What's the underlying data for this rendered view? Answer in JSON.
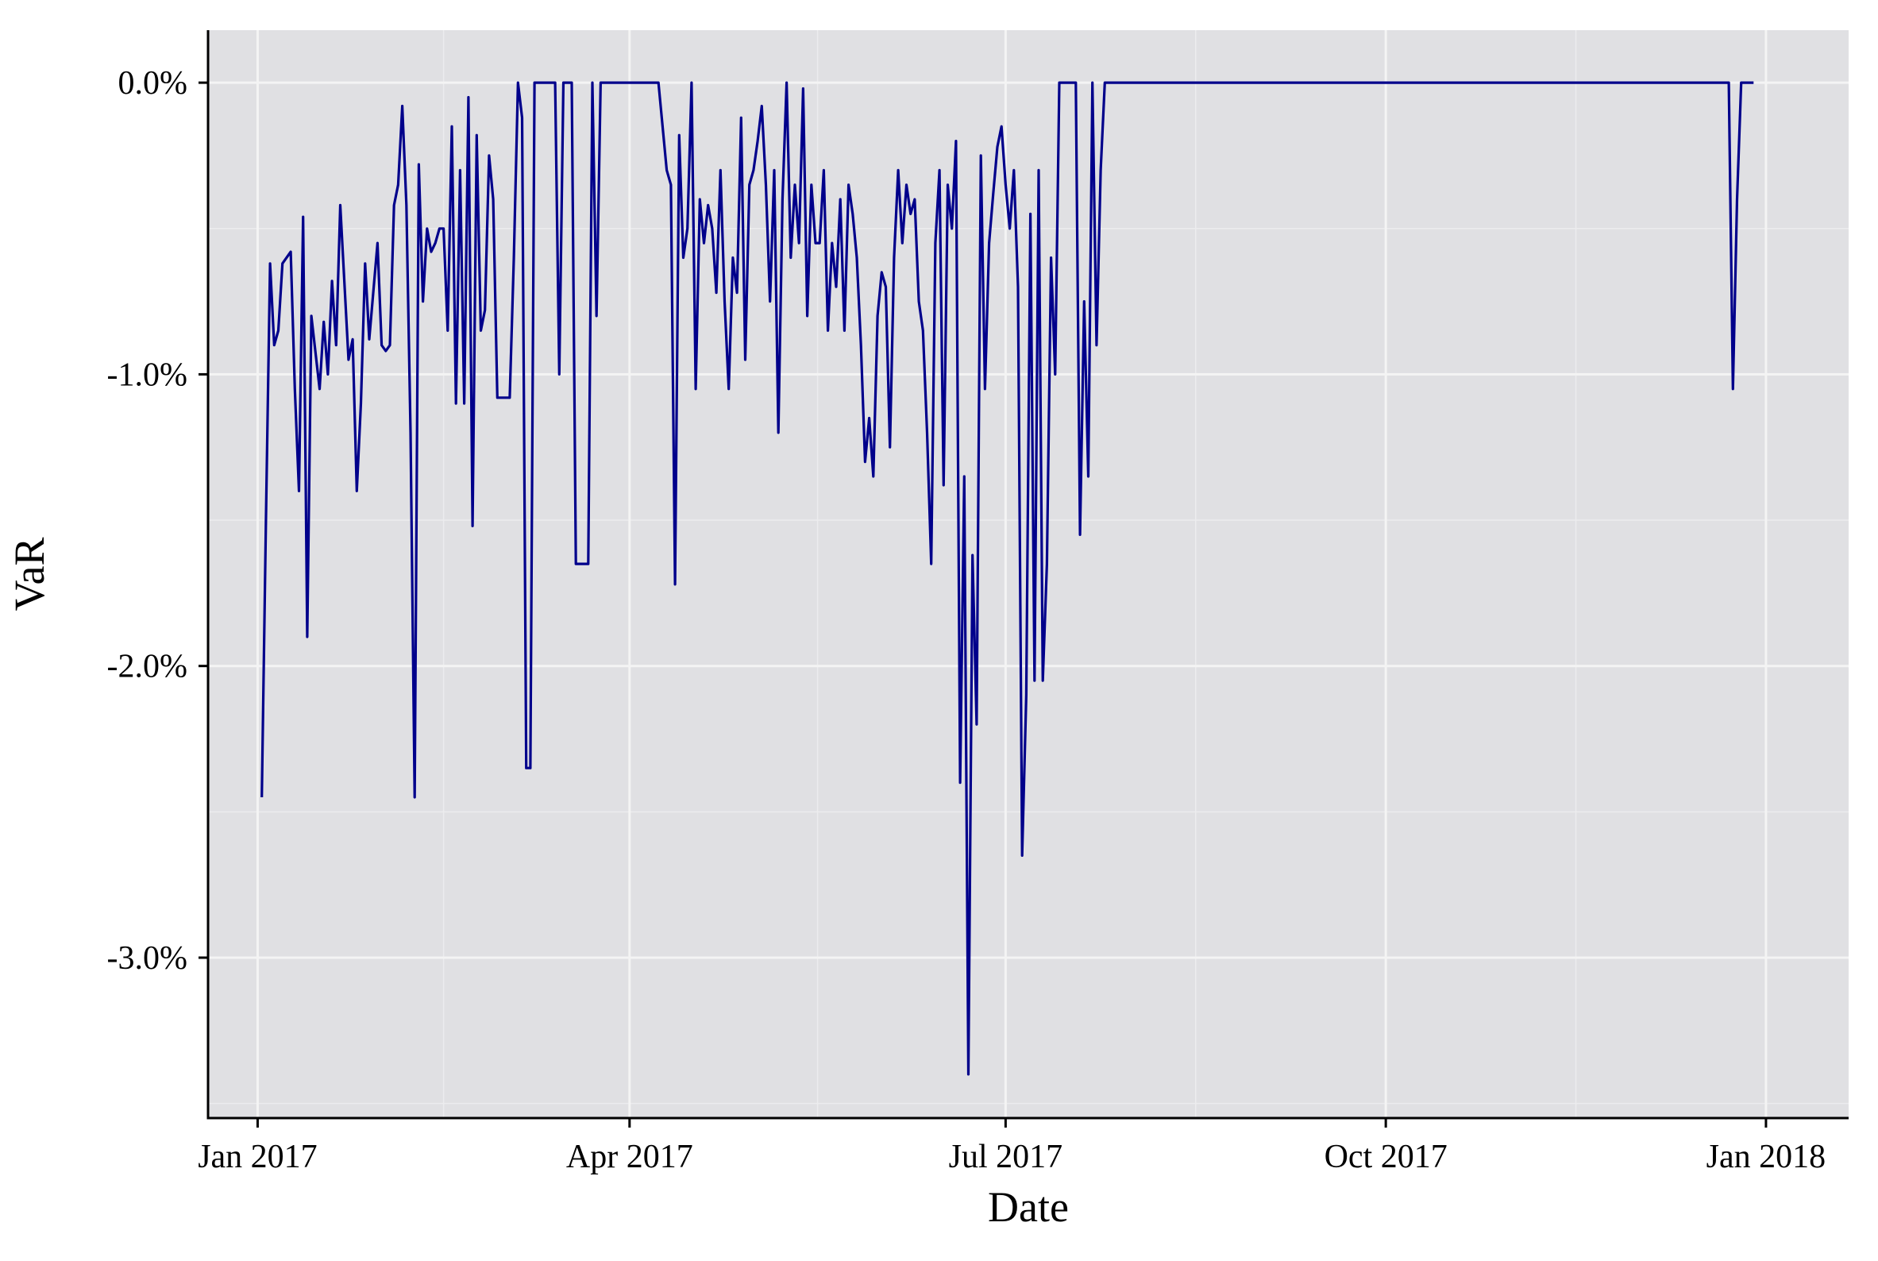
{
  "colors": {
    "panel_background": "#e0e0e3",
    "grid_major": "#f4f4f4",
    "grid_minor": "#ececee",
    "series_line": "#00008b",
    "axis": "#000000"
  },
  "chart_data": {
    "type": "line",
    "title": "",
    "xlabel": "Date",
    "ylabel": "VaR",
    "xlim": [
      "2016-12-20",
      "2018-01-21"
    ],
    "ylim": [
      -3.55,
      0.18
    ],
    "y_unit": "percent",
    "grid": true,
    "legend": "none",
    "x_ticks": [
      {
        "date": "2017-01-01",
        "label": "Jan 2017"
      },
      {
        "date": "2017-04-01",
        "label": "Apr 2017"
      },
      {
        "date": "2017-07-01",
        "label": "Jul 2017"
      },
      {
        "date": "2017-10-01",
        "label": "Oct 2017"
      },
      {
        "date": "2018-01-01",
        "label": "Jan 2018"
      }
    ],
    "y_ticks": [
      {
        "value": 0,
        "label": "0.0%"
      },
      {
        "value": -1,
        "label": "-1.0%"
      },
      {
        "value": -2,
        "label": "-2.0%"
      },
      {
        "value": -3,
        "label": "-3.0%"
      }
    ],
    "series": [
      {
        "color": "#00008b",
        "points": [
          [
            "2017-01-02",
            -2.45
          ],
          [
            "2017-01-03",
            -1.5
          ],
          [
            "2017-01-04",
            -0.62
          ],
          [
            "2017-01-05",
            -0.9
          ],
          [
            "2017-01-06",
            -0.85
          ],
          [
            "2017-01-07",
            -0.62
          ],
          [
            "2017-01-09",
            -0.58
          ],
          [
            "2017-01-10",
            -1.05
          ],
          [
            "2017-01-11",
            -1.4
          ],
          [
            "2017-01-12",
            -0.46
          ],
          [
            "2017-01-13",
            -1.9
          ],
          [
            "2017-01-14",
            -0.8
          ],
          [
            "2017-01-16",
            -1.05
          ],
          [
            "2017-01-17",
            -0.82
          ],
          [
            "2017-01-18",
            -1.0
          ],
          [
            "2017-01-19",
            -0.68
          ],
          [
            "2017-01-20",
            -0.9
          ],
          [
            "2017-01-21",
            -0.42
          ],
          [
            "2017-01-23",
            -0.95
          ],
          [
            "2017-01-24",
            -0.88
          ],
          [
            "2017-01-25",
            -1.4
          ],
          [
            "2017-01-26",
            -1.1
          ],
          [
            "2017-01-27",
            -0.62
          ],
          [
            "2017-01-28",
            -0.88
          ],
          [
            "2017-01-30",
            -0.55
          ],
          [
            "2017-01-31",
            -0.9
          ],
          [
            "2017-02-01",
            -0.92
          ],
          [
            "2017-02-02",
            -0.9
          ],
          [
            "2017-02-03",
            -0.42
          ],
          [
            "2017-02-04",
            -0.35
          ],
          [
            "2017-02-05",
            -0.08
          ],
          [
            "2017-02-06",
            -0.42
          ],
          [
            "2017-02-07",
            -1.2
          ],
          [
            "2017-02-08",
            -2.45
          ],
          [
            "2017-02-09",
            -0.28
          ],
          [
            "2017-02-10",
            -0.75
          ],
          [
            "2017-02-11",
            -0.5
          ],
          [
            "2017-02-12",
            -0.58
          ],
          [
            "2017-02-13",
            -0.55
          ],
          [
            "2017-02-14",
            -0.5
          ],
          [
            "2017-02-15",
            -0.5
          ],
          [
            "2017-02-16",
            -0.85
          ],
          [
            "2017-02-17",
            -0.15
          ],
          [
            "2017-02-18",
            -1.1
          ],
          [
            "2017-02-19",
            -0.3
          ],
          [
            "2017-02-20",
            -1.1
          ],
          [
            "2017-02-21",
            -0.05
          ],
          [
            "2017-02-22",
            -1.52
          ],
          [
            "2017-02-23",
            -0.18
          ],
          [
            "2017-02-24",
            -0.85
          ],
          [
            "2017-02-25",
            -0.78
          ],
          [
            "2017-02-26",
            -0.25
          ],
          [
            "2017-02-27",
            -0.4
          ],
          [
            "2017-02-28",
            -1.08
          ],
          [
            "2017-03-01",
            -1.08
          ],
          [
            "2017-03-02",
            -1.08
          ],
          [
            "2017-03-03",
            -1.08
          ],
          [
            "2017-03-04",
            -0.6
          ],
          [
            "2017-03-05",
            0.0
          ],
          [
            "2017-03-06",
            -0.12
          ],
          [
            "2017-03-07",
            -2.35
          ],
          [
            "2017-03-08",
            -2.35
          ],
          [
            "2017-03-09",
            0.0
          ],
          [
            "2017-03-10",
            0.0
          ],
          [
            "2017-03-13",
            0.0
          ],
          [
            "2017-03-14",
            0.0
          ],
          [
            "2017-03-15",
            -1.0
          ],
          [
            "2017-03-16",
            0.0
          ],
          [
            "2017-03-17",
            0.0
          ],
          [
            "2017-03-18",
            0.0
          ],
          [
            "2017-03-19",
            -1.65
          ],
          [
            "2017-03-20",
            -1.65
          ],
          [
            "2017-03-22",
            -1.65
          ],
          [
            "2017-03-23",
            0.0
          ],
          [
            "2017-03-24",
            -0.8
          ],
          [
            "2017-03-25",
            0.0
          ],
          [
            "2017-04-01",
            0.0
          ],
          [
            "2017-04-08",
            0.0
          ],
          [
            "2017-04-10",
            -0.3
          ],
          [
            "2017-04-11",
            -0.35
          ],
          [
            "2017-04-12",
            -1.72
          ],
          [
            "2017-04-13",
            -0.18
          ],
          [
            "2017-04-14",
            -0.6
          ],
          [
            "2017-04-15",
            -0.5
          ],
          [
            "2017-04-16",
            0.0
          ],
          [
            "2017-04-17",
            -1.05
          ],
          [
            "2017-04-18",
            -0.4
          ],
          [
            "2017-04-19",
            -0.55
          ],
          [
            "2017-04-20",
            -0.42
          ],
          [
            "2017-04-21",
            -0.5
          ],
          [
            "2017-04-22",
            -0.72
          ],
          [
            "2017-04-23",
            -0.3
          ],
          [
            "2017-04-24",
            -0.75
          ],
          [
            "2017-04-25",
            -1.05
          ],
          [
            "2017-04-26",
            -0.6
          ],
          [
            "2017-04-27",
            -0.72
          ],
          [
            "2017-04-28",
            -0.12
          ],
          [
            "2017-04-29",
            -0.95
          ],
          [
            "2017-04-30",
            -0.35
          ],
          [
            "2017-05-01",
            -0.3
          ],
          [
            "2017-05-02",
            -0.2
          ],
          [
            "2017-05-03",
            -0.08
          ],
          [
            "2017-05-04",
            -0.35
          ],
          [
            "2017-05-05",
            -0.75
          ],
          [
            "2017-05-06",
            -0.3
          ],
          [
            "2017-05-07",
            -1.2
          ],
          [
            "2017-05-08",
            -0.4
          ],
          [
            "2017-05-09",
            0.0
          ],
          [
            "2017-05-10",
            -0.6
          ],
          [
            "2017-05-11",
            -0.35
          ],
          [
            "2017-05-12",
            -0.55
          ],
          [
            "2017-05-13",
            -0.02
          ],
          [
            "2017-05-14",
            -0.8
          ],
          [
            "2017-05-15",
            -0.35
          ],
          [
            "2017-05-16",
            -0.55
          ],
          [
            "2017-05-17",
            -0.55
          ],
          [
            "2017-05-18",
            -0.3
          ],
          [
            "2017-05-19",
            -0.85
          ],
          [
            "2017-05-20",
            -0.55
          ],
          [
            "2017-05-21",
            -0.7
          ],
          [
            "2017-05-22",
            -0.4
          ],
          [
            "2017-05-23",
            -0.85
          ],
          [
            "2017-05-24",
            -0.35
          ],
          [
            "2017-05-25",
            -0.45
          ],
          [
            "2017-05-26",
            -0.6
          ],
          [
            "2017-05-27",
            -0.9
          ],
          [
            "2017-05-28",
            -1.3
          ],
          [
            "2017-05-29",
            -1.15
          ],
          [
            "2017-05-30",
            -1.35
          ],
          [
            "2017-05-31",
            -0.8
          ],
          [
            "2017-06-01",
            -0.65
          ],
          [
            "2017-06-02",
            -0.7
          ],
          [
            "2017-06-03",
            -1.25
          ],
          [
            "2017-06-04",
            -0.6
          ],
          [
            "2017-06-05",
            -0.3
          ],
          [
            "2017-06-06",
            -0.55
          ],
          [
            "2017-06-07",
            -0.35
          ],
          [
            "2017-06-08",
            -0.45
          ],
          [
            "2017-06-09",
            -0.4
          ],
          [
            "2017-06-10",
            -0.75
          ],
          [
            "2017-06-11",
            -0.85
          ],
          [
            "2017-06-12",
            -1.2
          ],
          [
            "2017-06-13",
            -1.65
          ],
          [
            "2017-06-14",
            -0.55
          ],
          [
            "2017-06-15",
            -0.3
          ],
          [
            "2017-06-16",
            -1.38
          ],
          [
            "2017-06-17",
            -0.35
          ],
          [
            "2017-06-18",
            -0.5
          ],
          [
            "2017-06-19",
            -0.2
          ],
          [
            "2017-06-20",
            -2.4
          ],
          [
            "2017-06-21",
            -1.35
          ],
          [
            "2017-06-22",
            -3.4
          ],
          [
            "2017-06-23",
            -1.62
          ],
          [
            "2017-06-24",
            -2.2
          ],
          [
            "2017-06-25",
            -0.25
          ],
          [
            "2017-06-26",
            -1.05
          ],
          [
            "2017-06-27",
            -0.55
          ],
          [
            "2017-06-28",
            -0.38
          ],
          [
            "2017-06-29",
            -0.22
          ],
          [
            "2017-06-30",
            -0.15
          ],
          [
            "2017-07-01",
            -0.35
          ],
          [
            "2017-07-02",
            -0.5
          ],
          [
            "2017-07-03",
            -0.3
          ],
          [
            "2017-07-04",
            -0.7
          ],
          [
            "2017-07-05",
            -2.65
          ],
          [
            "2017-07-06",
            -2.1
          ],
          [
            "2017-07-07",
            -0.45
          ],
          [
            "2017-07-08",
            -2.05
          ],
          [
            "2017-07-09",
            -0.3
          ],
          [
            "2017-07-10",
            -2.05
          ],
          [
            "2017-07-11",
            -1.65
          ],
          [
            "2017-07-12",
            -0.6
          ],
          [
            "2017-07-13",
            -1.0
          ],
          [
            "2017-07-14",
            0.0
          ],
          [
            "2017-07-15",
            0.0
          ],
          [
            "2017-07-18",
            0.0
          ],
          [
            "2017-07-19",
            -1.55
          ],
          [
            "2017-07-20",
            -0.75
          ],
          [
            "2017-07-21",
            -1.35
          ],
          [
            "2017-07-22",
            0.0
          ],
          [
            "2017-07-23",
            -0.9
          ],
          [
            "2017-07-24",
            -0.3
          ],
          [
            "2017-07-25",
            0.0
          ],
          [
            "2017-07-26",
            0.0
          ],
          [
            "2017-08-15",
            0.0
          ],
          [
            "2017-09-01",
            0.0
          ],
          [
            "2017-10-01",
            0.0
          ],
          [
            "2017-11-01",
            0.0
          ],
          [
            "2017-12-01",
            0.0
          ],
          [
            "2017-12-23",
            0.0
          ],
          [
            "2017-12-24",
            -1.05
          ],
          [
            "2017-12-25",
            -0.4
          ],
          [
            "2017-12-26",
            0.0
          ],
          [
            "2017-12-29",
            0.0
          ]
        ]
      }
    ]
  }
}
